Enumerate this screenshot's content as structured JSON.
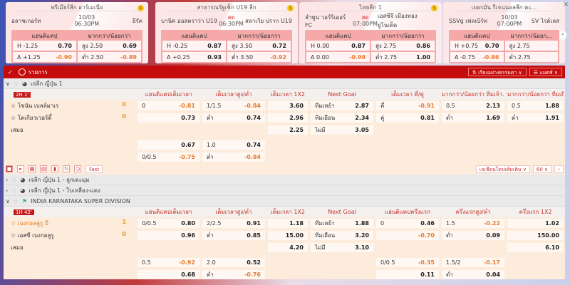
{
  "cards": [
    {
      "league": "พรีเมียร์ลีก อาร์เมเนีย",
      "home": "อลาชเกอร์ท",
      "away": "ยีรัต",
      "status": "10/03",
      "time": "06:30PM",
      "hdp_label": "แฮนดิแคป",
      "ou_label": "มากกว่า/น้อยกว่า",
      "rows": [
        [
          "H -1.25",
          "0.70",
          "สูง 2.50",
          "0.69"
        ],
        [
          "A +1.25",
          "-0.90",
          "ต่ำ 2.50",
          "-0.89"
        ]
      ]
    },
    {
      "league": "สาธารณรัฐเช็ก U19 ลีก",
      "home": "บานิค ออสตราว่า U19",
      "away": "สลาเวีย ปราก U19",
      "status": "สด",
      "time": "06:30PM",
      "hdp_label": "แฮนดิแคป",
      "ou_label": "มากกว่า/น้อยกว่า",
      "rows": [
        [
          "H -0.25",
          "0.87",
          "สูง 3.50",
          "0.72"
        ],
        [
          "A +0.25",
          "0.93",
          "ต่ำ 3.50",
          "-0.92"
        ]
      ]
    },
    {
      "league": "ไทยลีก 1",
      "home": "ลำพูน วอร์ริเออร์ FC",
      "away": "เอสซีจี เมืองทอง ยูไนเต็ด",
      "status": "สด",
      "time": "07:00PM",
      "hdp_label": "แฮนดิแคป",
      "ou_label": "มากกว่า/น้อยกว่า",
      "rows": [
        [
          "H 0.00",
          "0.87",
          "สูง 2.75",
          "0.86"
        ],
        [
          "A 0.00",
          "-0.99",
          "ต่ำ 2.75",
          "1.00"
        ]
      ]
    },
    {
      "league": "เยอรมัน รีเจนนอลลีก ตะ...",
      "home": "SSVg เฟลเบิร์ท",
      "away": "SV ไรด์เลส",
      "status": "10/03",
      "time": "07:00PM",
      "hdp_label": "แฮนดิแคป",
      "ou_label": "มากกว่า/น้อยก...",
      "rows": [
        [
          "H +0.75",
          "0.70",
          "สูง 2.75",
          ""
        ],
        [
          "A -0.75",
          "-0.86",
          "ต่ำ 2.75",
          ""
        ]
      ]
    }
  ],
  "bar": {
    "title": "รายการ",
    "sort": "เรียงอย่างธรรมดา",
    "view": "แมตช์"
  },
  "leagues": {
    "l1": "เจลีก ญี่ปุ่น 1",
    "l2": "เจลีก ญี่ปุ่น 1 - ลูกเตะมุม",
    "l3": "เจลีก ญี่ปุ่น 1 - ใบเหลือง-แดง",
    "l4": "INDIA KARNATAKA SUPER DIVISION"
  },
  "tools": {
    "fast": "Fast",
    "more": "เลเชียนโดปเพิ่มเติม",
    "count": "60"
  },
  "matches": [
    {
      "badge": "2H 1'",
      "headers": [
        "แฮนดิแคปเต็มเวลา",
        "เต็มเวลาสูง/ต่ำ",
        "เต็มเวลา 1X2",
        "Next Goal",
        "เต็มเวลา คี่/คู่",
        "มากกว่า/น้อยกว่า ทีมเจ้า...",
        "มากกว่า/น้อยกว่า ทีมเยือน"
      ],
      "rows": [
        {
          "team": "โชนัน เบลล์มาเร",
          "score": "0",
          "cells": [
            [
              "0",
              "-0.81"
            ],
            [
              "1/1.5",
              "-0.84"
            ],
            [
              "",
              "3.60"
            ],
            [
              "ทีมเหย้า",
              "2.87"
            ],
            [
              "คี่",
              "-0.91"
            ],
            [
              "0.5",
              "2.13"
            ],
            [
              "0.5",
              "1.88"
            ]
          ]
        },
        {
          "team": "โตเกียวเวอร์ดี้",
          "score": "0",
          "cells": [
            [
              "",
              "0.73"
            ],
            [
              "ต่ำ",
              "0.74"
            ],
            [
              "",
              "2.96"
            ],
            [
              "ทีมเยือน",
              "2.34"
            ],
            [
              "คู่",
              "0.81"
            ],
            [
              "ต่ำ",
              "1.69"
            ],
            [
              "ต่ำ",
              "1.91"
            ]
          ]
        },
        {
          "team": "เสมอ",
          "score": "",
          "cells": [
            null,
            null,
            [
              "",
              "2.25"
            ],
            [
              "ไม่มี",
              "3.05"
            ],
            null,
            null,
            null
          ]
        },
        {
          "team": "",
          "score": "",
          "cells": [
            [
              "",
              "0.67"
            ],
            [
              "1.0",
              "0.74"
            ],
            null,
            null,
            null,
            null,
            null
          ]
        },
        {
          "team": "",
          "score": "",
          "cells": [
            [
              "0/0.5",
              "-0.75"
            ],
            [
              "ต่ำ",
              "-0.84"
            ],
            null,
            null,
            null,
            null,
            null
          ]
        }
      ]
    },
    {
      "badge": "1H 42'",
      "headers": [
        "แฮนดิแคปเต็มเวลา",
        "เต็มเวลาสูง/ต่ำ",
        "เต็มเวลา 1X2",
        "Next Goal",
        "แฮนดิแคปครึ่งแรก",
        "ครึ่งแรกสูง/ต่ำ",
        "ครึ่งแรก 1X2"
      ],
      "rows": [
        {
          "team": "เบงกอลลูรู บี",
          "score": "1",
          "lead": true,
          "cells": [
            [
              "0/0.5",
              "0.80"
            ],
            [
              "2/2.5",
              "0.91"
            ],
            [
              "",
              "1.18"
            ],
            [
              "ทีมเหย้า",
              "1.88"
            ],
            [
              "0",
              "0.46"
            ],
            [
              "1.5",
              "-0.22"
            ],
            [
              "",
              "1.02"
            ]
          ]
        },
        {
          "team": "เอสซี เบงกอลูรู",
          "score": "0",
          "cells": [
            [
              "",
              "0.96"
            ],
            [
              "ต่ำ",
              "0.85"
            ],
            [
              "",
              "15.00"
            ],
            [
              "ทีมเยือน",
              "3.20"
            ],
            [
              "",
              "-0.70"
            ],
            [
              "ต่ำ",
              "0.09"
            ],
            [
              "",
              "150.00"
            ]
          ]
        },
        {
          "team": "เสมอ",
          "score": "",
          "cells": [
            null,
            null,
            [
              "",
              "4.20"
            ],
            [
              "ไม่มี",
              "3.10"
            ],
            null,
            null,
            [
              "",
              "6.10"
            ]
          ]
        },
        {
          "team": "",
          "score": "",
          "cells": [
            [
              "0.5",
              "-0.92"
            ],
            [
              "2.0",
              "0.52"
            ],
            null,
            null,
            [
              "0/0.5",
              "-0.35"
            ],
            [
              "1.5/2",
              "-0.17"
            ],
            null
          ]
        },
        {
          "team": "",
          "score": "",
          "cells": [
            [
              "",
              "0.68"
            ],
            [
              "ต่ำ",
              "-0.76"
            ],
            null,
            null,
            [
              "",
              "0.11"
            ],
            [
              "ต่ำ",
              "0.04"
            ],
            null
          ]
        }
      ]
    }
  ],
  "colors": {
    "brand_red": "#c50c0c",
    "negative": "#ea7a2e",
    "header_text": "#c8332b"
  }
}
